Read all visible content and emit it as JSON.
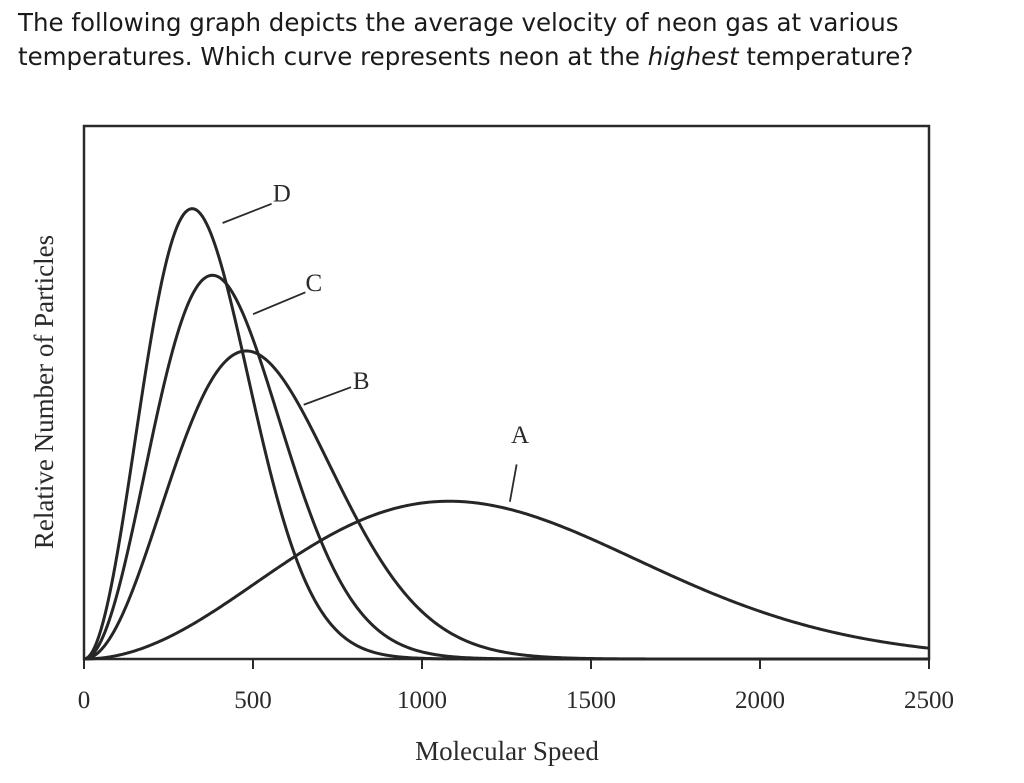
{
  "question": {
    "text_before": "The following graph depicts the average velocity of neon gas at various temperatures. Which curve represents neon at the ",
    "emphasis": "highest",
    "text_after": " temperature?"
  },
  "chart_data": {
    "type": "line",
    "title": "",
    "xlabel": "Molecular Speed",
    "ylabel": "Relative Number of Particles",
    "xlim": [
      0,
      2500
    ],
    "ylim": [
      0,
      1
    ],
    "x_ticks": [
      0,
      500,
      1000,
      1500,
      2000,
      2500
    ],
    "x_tick_labels": [
      "0",
      "500",
      "1000",
      "1500",
      "2000",
      "2500"
    ],
    "y_ticks_shown": false,
    "grid": false,
    "series": [
      {
        "name": "A",
        "most_probable_speed": 1080,
        "peak": 0.296,
        "label_x": 1290,
        "label_y": 0.405,
        "label_leader_start": [
          1280,
          0.365
        ],
        "label_leader_end": [
          1260,
          0.295
        ]
      },
      {
        "name": "B",
        "most_probable_speed": 480,
        "peak": 0.578,
        "label_x": 820,
        "label_y": 0.507,
        "label_leader_start": [
          790,
          0.51
        ],
        "label_leader_end": [
          650,
          0.477
        ]
      },
      {
        "name": "C",
        "most_probable_speed": 380,
        "peak": 0.72,
        "label_x": 680,
        "label_y": 0.69,
        "label_leader_start": [
          655,
          0.688
        ],
        "label_leader_end": [
          500,
          0.647
        ]
      },
      {
        "name": "D",
        "most_probable_speed": 320,
        "peak": 0.845,
        "label_x": 585,
        "label_y": 0.858,
        "label_leader_start": [
          555,
          0.854
        ],
        "label_leader_end": [
          410,
          0.818
        ]
      }
    ]
  }
}
